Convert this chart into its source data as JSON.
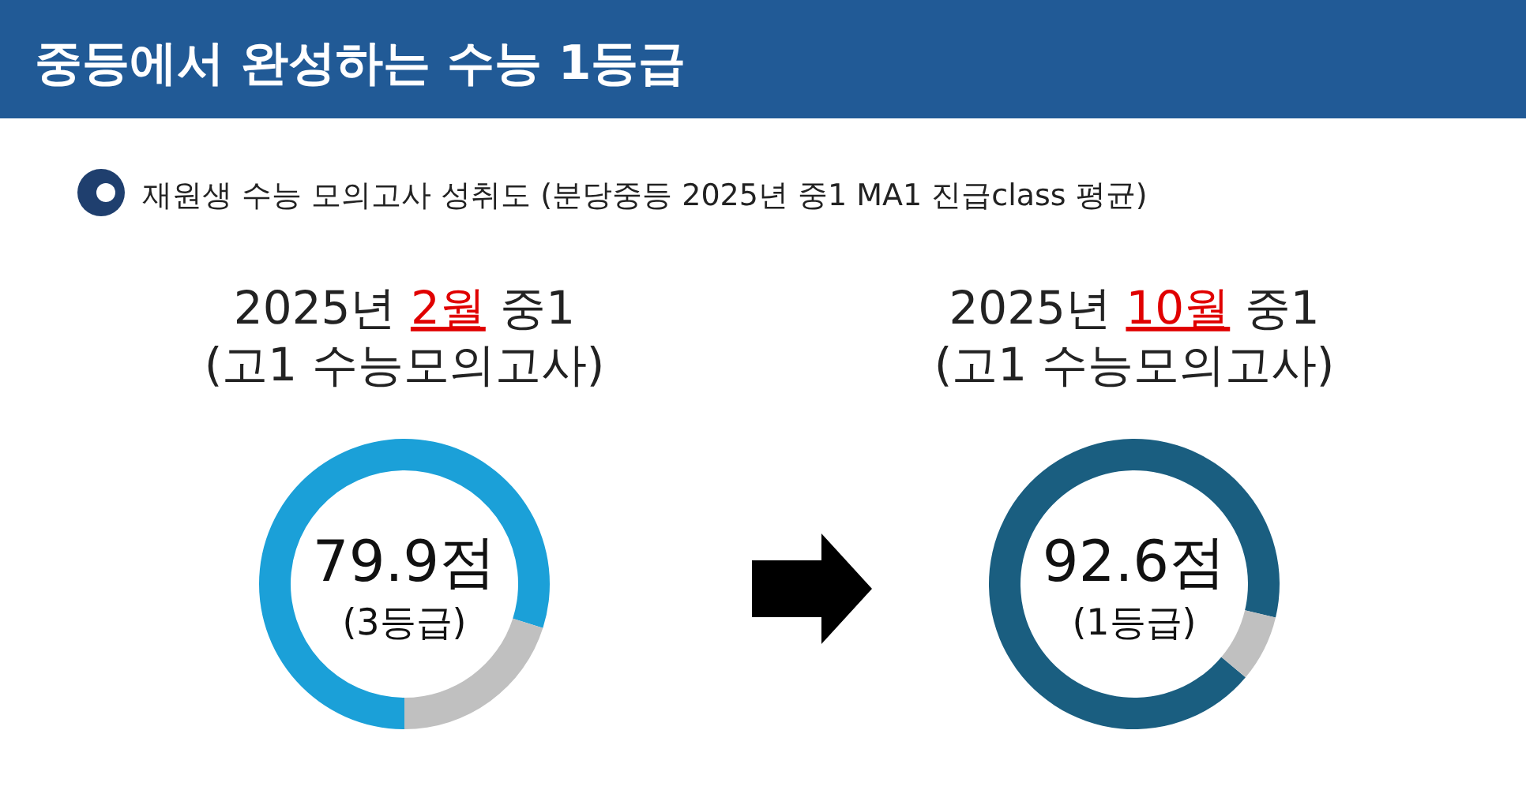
{
  "chart_data": [
    {
      "type": "other",
      "title": "중등에서 완성하는 수능 1등급",
      "subtitle": "재원생 수능 모의고사 성취도 (분당중등 2025년 중1 MA1 진급class 평균)"
    },
    {
      "type": "donut",
      "title": "2025년 2월 중1\n(고1 수능모의고사)",
      "categories": [
        null,
        null
      ],
      "values": [
        79.9,
        20.1
      ],
      "colors": [
        "#1ba0d8",
        "#c0c0c0"
      ],
      "annotations": [
        "79.9점",
        "(3등급)"
      ]
    },
    {
      "type": "donut",
      "title": "2025년 10월 중1\n(고1 수능모의고사)",
      "categories": [
        null,
        null
      ],
      "values": [
        92.6,
        7.4
      ],
      "colors": [
        "#1a5e80",
        "#c0c0c0"
      ],
      "annotations": [
        "92.6점",
        "(1등급)"
      ]
    }
  ]
}
